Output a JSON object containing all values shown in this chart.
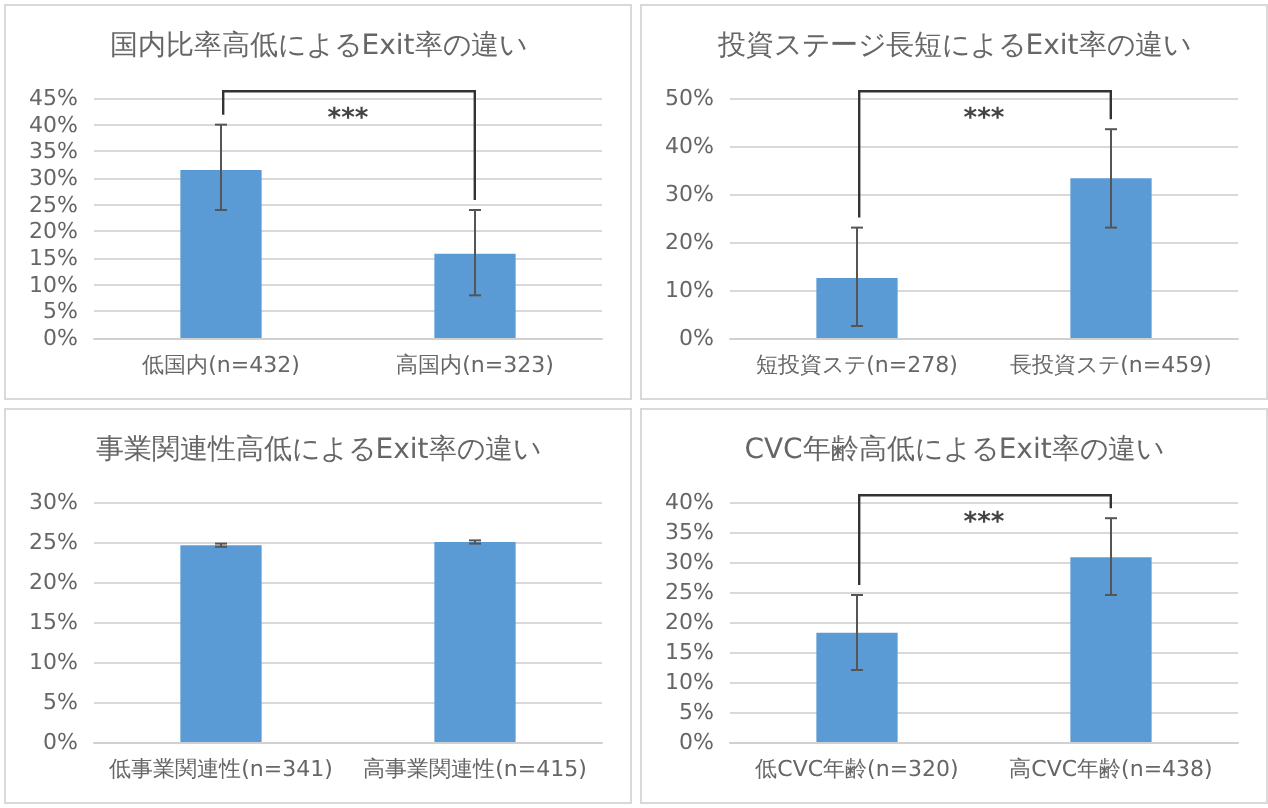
{
  "chart_data": [
    {
      "type": "bar",
      "title": "国内比率高低によるExit率の違い",
      "categories": [
        "低国内(n=432)",
        "高国内(n=323)"
      ],
      "values": [
        31.5,
        15.8
      ],
      "color": "#5b9bd5",
      "errors": [
        [
          24,
          40
        ],
        [
          8,
          24
        ]
      ],
      "ylim": [
        0,
        45
      ],
      "yticks": [
        {
          "value": 0,
          "label": "0%"
        },
        {
          "value": 5,
          "label": "5%"
        },
        {
          "value": 10,
          "label": "10%"
        },
        {
          "value": 15,
          "label": "15%"
        },
        {
          "value": 20,
          "label": "20%"
        },
        {
          "value": 25,
          "label": "25%"
        },
        {
          "value": 30,
          "label": "30%"
        },
        {
          "value": 35,
          "label": "35%"
        },
        {
          "value": 40,
          "label": "40%"
        },
        {
          "value": 45,
          "label": "45%"
        }
      ],
      "grid": "y",
      "annotations": [
        "***"
      ]
    },
    {
      "type": "bar",
      "title": "投資ステージ長短によるExit率の違い",
      "categories": [
        "短投資ステ(n=278)",
        "長投資ステ(n=459)"
      ],
      "values": [
        12.5,
        33.3
      ],
      "color": "#5b9bd5",
      "errors": [
        [
          2.5,
          23
        ],
        [
          23,
          43.5
        ]
      ],
      "ylim": [
        0,
        50
      ],
      "yticks": [
        {
          "value": 0,
          "label": "0%"
        },
        {
          "value": 10,
          "label": "10%"
        },
        {
          "value": 20,
          "label": "20%"
        },
        {
          "value": 30,
          "label": "30%"
        },
        {
          "value": 40,
          "label": "40%"
        },
        {
          "value": 50,
          "label": "50%"
        }
      ],
      "grid": "y",
      "annotations": [
        "***"
      ]
    },
    {
      "type": "bar",
      "title": "事業関連性高低によるExit率の違い",
      "categories": [
        "低事業関連性(n=341)",
        "高事業関連性(n=415)"
      ],
      "values": [
        24.6,
        25
      ],
      "color": "#5b9bd5",
      "errors": [
        [
          24.4,
          24.8
        ],
        [
          24.8,
          25.2
        ]
      ],
      "ylim": [
        0,
        30
      ],
      "yticks": [
        {
          "value": 0,
          "label": "0%"
        },
        {
          "value": 5,
          "label": "5%"
        },
        {
          "value": 10,
          "label": "10%"
        },
        {
          "value": 15,
          "label": "15%"
        },
        {
          "value": 20,
          "label": "20%"
        },
        {
          "value": 25,
          "label": "25%"
        },
        {
          "value": 30,
          "label": "30%"
        }
      ],
      "grid": "y"
    },
    {
      "type": "bar",
      "title": "CVC年齢高低によるExit率の違い",
      "categories": [
        "低CVC年齢(n=320)",
        "高CVC年齢(n=438)"
      ],
      "values": [
        18.2,
        30.8
      ],
      "color": "#5b9bd5",
      "errors": [
        [
          12,
          24.5
        ],
        [
          24.5,
          37.3
        ]
      ],
      "ylim": [
        0,
        40
      ],
      "yticks": [
        {
          "value": 0,
          "label": "0%"
        },
        {
          "value": 5,
          "label": "5%"
        },
        {
          "value": 10,
          "label": "10%"
        },
        {
          "value": 15,
          "label": "15%"
        },
        {
          "value": 20,
          "label": "20%"
        },
        {
          "value": 25,
          "label": "25%"
        },
        {
          "value": 30,
          "label": "30%"
        },
        {
          "value": 35,
          "label": "35%"
        },
        {
          "value": 40,
          "label": "40%"
        }
      ],
      "grid": "y",
      "annotations": [
        "***"
      ]
    }
  ]
}
